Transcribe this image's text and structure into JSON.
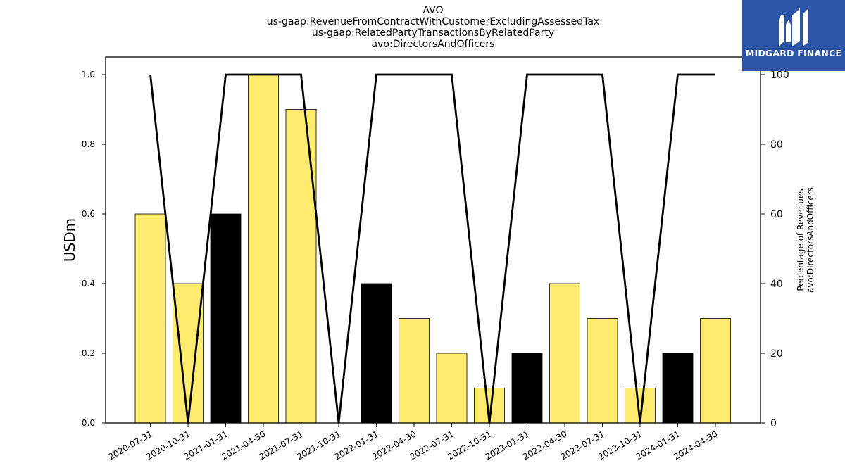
{
  "title_lines": [
    "AVO",
    "us-gaap:RevenueFromContractWithCustomerExcludingAssessedTax",
    "us-gaap:RelatedPartyTransactionsByRelatedParty",
    "avo:DirectorsAndOfficers"
  ],
  "logo": {
    "text": "MIDGARD FINANCE",
    "bg_color": "#2b56a8"
  },
  "chart_data": {
    "type": "bar",
    "categories": [
      "2020-07-31",
      "2020-10-31",
      "2021-01-31",
      "2021-04-30",
      "2021-07-31",
      "2021-10-31",
      "2022-01-31",
      "2022-04-30",
      "2022-07-31",
      "2022-10-31",
      "2023-01-31",
      "2023-04-30",
      "2023-07-31",
      "2023-10-31",
      "2024-01-31",
      "2024-04-30"
    ],
    "values": [
      0.6,
      0.4,
      0.6,
      1.0,
      0.9,
      0.0,
      0.4,
      0.3,
      0.2,
      0.1,
      0.2,
      0.4,
      0.3,
      0.1,
      0.2,
      0.3
    ],
    "bar_colors": [
      "#ffec6e",
      "#ffec6e",
      "#000000",
      "#ffec6e",
      "#ffec6e",
      "#ffec6e",
      "#000000",
      "#ffec6e",
      "#ffec6e",
      "#ffec6e",
      "#000000",
      "#ffec6e",
      "#ffec6e",
      "#ffec6e",
      "#000000",
      "#ffec6e"
    ],
    "ylabel": "USDm",
    "ylim": [
      0,
      1.0
    ],
    "yticks": [
      "0.0",
      "0.2",
      "0.4",
      "0.6",
      "0.8",
      "1.0"
    ],
    "line_series": {
      "values": [
        100,
        0,
        100,
        100,
        100,
        0,
        100,
        100,
        100,
        0,
        100,
        100,
        100,
        0,
        100,
        100
      ],
      "color": "#000000"
    },
    "y2label_lines": [
      "Percentage of Revenues",
      "avo:DirectorsAndOfficers"
    ],
    "y2lim": [
      0,
      100
    ],
    "y2ticks": [
      "0",
      "20",
      "40",
      "60",
      "80",
      "100"
    ],
    "grid": false,
    "legend": "none"
  }
}
